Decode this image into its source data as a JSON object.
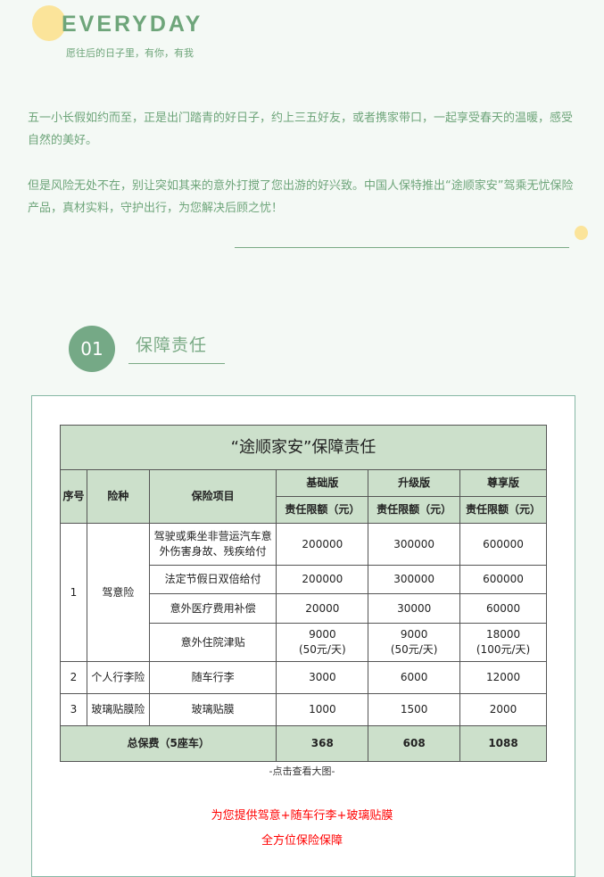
{
  "header": {
    "title": "EVERYDAY",
    "subtitle": "愿往后的日子里，有你，有我"
  },
  "intro": {
    "p1": "五一小长假如约而至，正是出门踏青的好日子，约上三五好友，或者携家带口，一起享受春天的温暖，感受自然的美好。",
    "p2": "但是风险无处不在，别让突如其来的意外打搅了您出游的好兴致。中国人保特推出“途顺家安”驾乘无忧保险产品，真材实料，守护出行，为您解决后顾之忧！"
  },
  "section": {
    "number": "01",
    "title": "保障责任"
  },
  "table": {
    "title": "“途顺家安”保障责任",
    "headers": {
      "no": "序号",
      "type": "险种",
      "item": "保险项目",
      "plans": [
        "基础版",
        "升级版",
        "尊享版"
      ],
      "unit": "责任限额（元）"
    },
    "groups": [
      {
        "no": "1",
        "type": "驾意险"
      },
      {
        "no": "2",
        "type": "个人行李险"
      },
      {
        "no": "3",
        "type": "玻璃贴膜险"
      }
    ],
    "rows": [
      {
        "item": "驾驶或乘坐非营运汽车意外伤害身故、残疾给付",
        "values": [
          "200000",
          "300000",
          "600000"
        ]
      },
      {
        "item": "法定节假日双倍给付",
        "values": [
          "200000",
          "300000",
          "600000"
        ]
      },
      {
        "item": "意外医疗费用补偿",
        "values": [
          "20000",
          "30000",
          "60000"
        ]
      },
      {
        "item": "意外住院津贴",
        "values": [
          "9000\n(50元/天)",
          "9000\n(50元/天)",
          "18000\n(100元/天)"
        ]
      },
      {
        "item": "随车行李",
        "values": [
          "3000",
          "6000",
          "12000"
        ]
      },
      {
        "item": "玻璃贴膜",
        "values": [
          "1000",
          "1500",
          "2000"
        ]
      }
    ],
    "total": {
      "label": "总保费（5座车）",
      "values": [
        "368",
        "608",
        "1088"
      ]
    }
  },
  "caption": "-点击查看大图-",
  "promo": {
    "line1": "为您提供驾意+随车行李+玻璃贴膜",
    "line2": "全方位保险保障"
  },
  "colors": {
    "accent": "#6ea57a",
    "yellow": "#fbe49a",
    "header_bg": "#cce0cb",
    "promo": "#ff0000"
  }
}
